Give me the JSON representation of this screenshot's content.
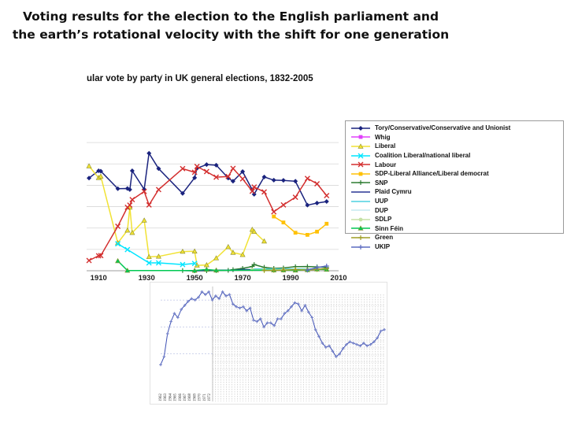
{
  "slide": {
    "title_line1": "Voting results for the election to the English parliament and",
    "title_line2": "the earth’s rotational velocity with the shift for one generation"
  },
  "chart_data": [
    {
      "type": "line",
      "title": "ular vote by party in UK general elections, 1832-2005",
      "title_prefix_fragment": ". .",
      "xlabel": "",
      "ylabel": "",
      "xlim": [
        1905,
        2010
      ],
      "x_ticks": [
        "1910",
        "1930",
        "1950",
        "1970",
        "1990",
        "2010"
      ],
      "ylim": [
        0,
        70
      ],
      "grid": true,
      "legend_position": "right",
      "series": [
        {
          "name": "Tory/Conservative/Conservative and Unionist",
          "color": "#1a237e",
          "marker": "diamond",
          "x": [
            1906,
            1910,
            1910.9,
            1918,
            1922,
            1923,
            1924,
            1929,
            1931,
            1935,
            1945,
            1950,
            1951,
            1955,
            1959,
            1964,
            1966,
            1970,
            1974,
            1974.8,
            1979,
            1983,
            1987,
            1992,
            1997,
            2001,
            2005
          ],
          "y": [
            43.4,
            46.8,
            46.6,
            38.4,
            38.5,
            38.0,
            46.8,
            38.1,
            55.0,
            47.8,
            36.2,
            43.5,
            48.0,
            49.7,
            49.4,
            43.4,
            41.9,
            46.4,
            37.9,
            35.8,
            43.9,
            42.4,
            42.3,
            41.9,
            30.7,
            31.7,
            32.4
          ]
        },
        {
          "name": "Whig",
          "color": "#e040fb",
          "marker": "square",
          "x": [],
          "y": []
        },
        {
          "name": "Liberal",
          "color": "#f1e234",
          "marker": "triangle",
          "x": [
            1906,
            1910,
            1910.9,
            1918,
            1922,
            1923,
            1924,
            1929,
            1931,
            1935,
            1945,
            1950,
            1951,
            1955,
            1959,
            1964,
            1966,
            1970,
            1974,
            1974.8,
            1979
          ],
          "y": [
            49.0,
            43.5,
            44.2,
            13.0,
            18.9,
            29.7,
            17.8,
            23.6,
            6.5,
            6.7,
            9.0,
            9.1,
            2.5,
            2.7,
            5.9,
            11.2,
            8.5,
            7.5,
            19.3,
            18.3,
            13.8
          ]
        },
        {
          "name": "Coalition Liberal/national liberal",
          "color": "#00e5ff",
          "marker": "x",
          "x": [
            1918,
            1922,
            1931,
            1935,
            1945,
            1950
          ],
          "y": [
            12.6,
            9.9,
            3.7,
            3.7,
            2.9,
            3.4
          ]
        },
        {
          "name": "Labour",
          "color": "#d32f2f",
          "marker": "x",
          "x": [
            1906,
            1910,
            1910.9,
            1918,
            1922,
            1923,
            1924,
            1929,
            1931,
            1935,
            1945,
            1950,
            1951,
            1955,
            1959,
            1964,
            1966,
            1970,
            1974,
            1974.8,
            1979,
            1983,
            1987,
            1992,
            1997,
            2001,
            2005
          ],
          "y": [
            4.8,
            7.0,
            7.1,
            20.8,
            29.7,
            30.7,
            33.3,
            37.1,
            30.8,
            38.0,
            47.8,
            46.1,
            48.8,
            46.4,
            43.8,
            44.1,
            47.9,
            43.0,
            37.2,
            39.2,
            36.9,
            27.6,
            30.8,
            34.4,
            43.2,
            40.7,
            35.2
          ]
        },
        {
          "name": "SDP-Liberal Alliance/Liberal democrat",
          "color": "#ffc107",
          "marker": "square",
          "x": [
            1983,
            1987,
            1992,
            1997,
            2001,
            2005
          ],
          "y": [
            25.4,
            22.6,
            17.8,
            16.8,
            18.3,
            22.0
          ]
        },
        {
          "name": "SNP",
          "color": "#2e7d32",
          "marker": "plus",
          "x": [
            1945,
            1950,
            1955,
            1959,
            1964,
            1966,
            1970,
            1974,
            1974.8,
            1979,
            1983,
            1987,
            1992,
            1997,
            2001,
            2005
          ],
          "y": [
            0.1,
            0.0,
            0.0,
            0.1,
            0.2,
            0.5,
            1.1,
            2.0,
            2.9,
            1.6,
            1.1,
            1.3,
            1.9,
            2.0,
            1.8,
            1.5
          ]
        },
        {
          "name": "Plaid Cymru",
          "color": "#283593",
          "marker": "none",
          "x": [
            1945,
            1950,
            1955,
            1959,
            1964,
            1966,
            1970,
            1974,
            1974.8,
            1979,
            1983,
            1987,
            1992,
            1997,
            2001,
            2005
          ],
          "y": [
            0.1,
            0.0,
            0.2,
            0.3,
            0.3,
            0.2,
            0.6,
            0.5,
            0.6,
            0.4,
            0.4,
            0.4,
            0.5,
            0.5,
            0.7,
            0.6
          ]
        },
        {
          "name": "UUP",
          "color": "#4dd0e1",
          "marker": "none",
          "x": [
            1974,
            1979,
            1983,
            1987,
            1992,
            1997,
            2001,
            2005
          ],
          "y": [
            0.8,
            0.8,
            0.8,
            0.8,
            0.8,
            0.8,
            0.8,
            0.5
          ]
        },
        {
          "name": "DUP",
          "color": "#c6e9f0",
          "marker": "none",
          "x": [
            1979,
            1983,
            1987,
            1992,
            1997,
            2001,
            2005
          ],
          "y": [
            0.2,
            0.5,
            0.3,
            0.3,
            0.3,
            0.7,
            0.9
          ]
        },
        {
          "name": "SDLP",
          "color": "#c5e1a5",
          "marker": "circle",
          "x": [
            1974,
            1979,
            1983,
            1987,
            1992,
            1997,
            2001,
            2005
          ],
          "y": [
            0.5,
            0.4,
            0.4,
            0.5,
            0.5,
            0.6,
            0.6,
            0.5
          ]
        },
        {
          "name": "Sinn Féin",
          "color": "#00c853",
          "marker": "triangle",
          "x": [
            1918,
            1922,
            1950,
            1955,
            1959,
            1983,
            1987,
            1992,
            1997,
            2001,
            2005
          ],
          "y": [
            4.6,
            0.1,
            0.1,
            0.6,
            0.2,
            0.3,
            0.3,
            0.2,
            0.4,
            0.7,
            0.6
          ]
        },
        {
          "name": "Green",
          "color": "#9e9d24",
          "marker": "plus",
          "x": [
            1979,
            1983,
            1987,
            1992,
            1997,
            2001,
            2005
          ],
          "y": [
            0.1,
            0.2,
            0.3,
            0.5,
            0.3,
            0.6,
            1.0
          ]
        },
        {
          "name": "UKIP",
          "color": "#5c6bc0",
          "marker": "plus",
          "x": [
            1997,
            2001,
            2005
          ],
          "y": [
            0.3,
            1.5,
            2.2
          ]
        }
      ]
    },
    {
      "type": "line",
      "title": "",
      "xlabel": "",
      "ylabel": "",
      "x_ticks": [
        "1962",
        "1963",
        "1964",
        "1965",
        "1966",
        "1967",
        "1968",
        "1969",
        "1970",
        "1971",
        "1972"
      ],
      "grid": true,
      "series": [
        {
          "name": "",
          "color": "#3f51b5",
          "marker": "plus",
          "values": [
            12,
            18,
            35,
            44,
            50,
            47,
            53,
            56,
            59,
            61,
            60,
            62,
            66,
            64,
            66,
            60,
            63,
            61,
            66,
            63,
            64,
            57,
            55,
            54,
            55,
            52,
            54,
            45,
            44,
            46,
            40,
            43,
            43,
            41,
            46,
            46,
            50,
            52,
            55,
            58,
            57,
            52,
            56,
            51,
            47,
            38,
            33,
            28,
            25,
            26,
            22,
            18,
            20,
            24,
            27,
            29,
            28,
            27,
            26,
            28,
            26,
            27,
            29,
            32,
            37,
            38
          ]
        }
      ]
    }
  ],
  "legend": {
    "items": [
      {
        "label": "Tory/Conservative/Conservative and Unionist",
        "color": "#1a237e",
        "marker": "diamond"
      },
      {
        "label": "Whig",
        "color": "#e040fb",
        "marker": "square"
      },
      {
        "label": "Liberal",
        "color": "#f1e234",
        "marker": "triangle"
      },
      {
        "label": "Coalition Liberal/national liberal",
        "color": "#00e5ff",
        "marker": "x"
      },
      {
        "label": "Labour",
        "color": "#d32f2f",
        "marker": "x"
      },
      {
        "label": "SDP-Liberal Alliance/Liberal democrat",
        "color": "#ffc107",
        "marker": "square"
      },
      {
        "label": "SNP",
        "color": "#2e7d32",
        "marker": "plus"
      },
      {
        "label": "Plaid Cymru",
        "color": "#283593",
        "marker": "none"
      },
      {
        "label": "UUP",
        "color": "#4dd0e1",
        "marker": "none"
      },
      {
        "label": "DUP",
        "color": "#c6e9f0",
        "marker": "none"
      },
      {
        "label": "SDLP",
        "color": "#c5e1a5",
        "marker": "circle"
      },
      {
        "label": "Sinn Féin",
        "color": "#00c853",
        "marker": "triangle"
      },
      {
        "label": "Green",
        "color": "#9e9d24",
        "marker": "plus"
      },
      {
        "label": "UKIP",
        "color": "#5c6bc0",
        "marker": "plus"
      }
    ]
  }
}
